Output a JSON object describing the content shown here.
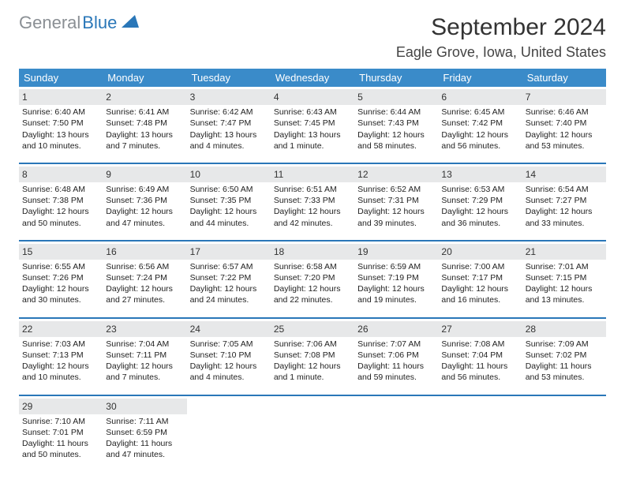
{
  "logo": {
    "gray": "General",
    "blue": "Blue"
  },
  "title": "September 2024",
  "location": "Eagle Grove, Iowa, United States",
  "colors": {
    "header_bg": "#3a8bc9",
    "week_rule": "#2a77b8",
    "daynum_bg": "#e7e8e9",
    "logo_gray": "#8a8f94",
    "logo_blue": "#2a77b8"
  },
  "dow": [
    "Sunday",
    "Monday",
    "Tuesday",
    "Wednesday",
    "Thursday",
    "Friday",
    "Saturday"
  ],
  "days": [
    {
      "n": "1",
      "sr": "Sunrise: 6:40 AM",
      "ss": "Sunset: 7:50 PM",
      "dl": "Daylight: 13 hours and 10 minutes."
    },
    {
      "n": "2",
      "sr": "Sunrise: 6:41 AM",
      "ss": "Sunset: 7:48 PM",
      "dl": "Daylight: 13 hours and 7 minutes."
    },
    {
      "n": "3",
      "sr": "Sunrise: 6:42 AM",
      "ss": "Sunset: 7:47 PM",
      "dl": "Daylight: 13 hours and 4 minutes."
    },
    {
      "n": "4",
      "sr": "Sunrise: 6:43 AM",
      "ss": "Sunset: 7:45 PM",
      "dl": "Daylight: 13 hours and 1 minute."
    },
    {
      "n": "5",
      "sr": "Sunrise: 6:44 AM",
      "ss": "Sunset: 7:43 PM",
      "dl": "Daylight: 12 hours and 58 minutes."
    },
    {
      "n": "6",
      "sr": "Sunrise: 6:45 AM",
      "ss": "Sunset: 7:42 PM",
      "dl": "Daylight: 12 hours and 56 minutes."
    },
    {
      "n": "7",
      "sr": "Sunrise: 6:46 AM",
      "ss": "Sunset: 7:40 PM",
      "dl": "Daylight: 12 hours and 53 minutes."
    },
    {
      "n": "8",
      "sr": "Sunrise: 6:48 AM",
      "ss": "Sunset: 7:38 PM",
      "dl": "Daylight: 12 hours and 50 minutes."
    },
    {
      "n": "9",
      "sr": "Sunrise: 6:49 AM",
      "ss": "Sunset: 7:36 PM",
      "dl": "Daylight: 12 hours and 47 minutes."
    },
    {
      "n": "10",
      "sr": "Sunrise: 6:50 AM",
      "ss": "Sunset: 7:35 PM",
      "dl": "Daylight: 12 hours and 44 minutes."
    },
    {
      "n": "11",
      "sr": "Sunrise: 6:51 AM",
      "ss": "Sunset: 7:33 PM",
      "dl": "Daylight: 12 hours and 42 minutes."
    },
    {
      "n": "12",
      "sr": "Sunrise: 6:52 AM",
      "ss": "Sunset: 7:31 PM",
      "dl": "Daylight: 12 hours and 39 minutes."
    },
    {
      "n": "13",
      "sr": "Sunrise: 6:53 AM",
      "ss": "Sunset: 7:29 PM",
      "dl": "Daylight: 12 hours and 36 minutes."
    },
    {
      "n": "14",
      "sr": "Sunrise: 6:54 AM",
      "ss": "Sunset: 7:27 PM",
      "dl": "Daylight: 12 hours and 33 minutes."
    },
    {
      "n": "15",
      "sr": "Sunrise: 6:55 AM",
      "ss": "Sunset: 7:26 PM",
      "dl": "Daylight: 12 hours and 30 minutes."
    },
    {
      "n": "16",
      "sr": "Sunrise: 6:56 AM",
      "ss": "Sunset: 7:24 PM",
      "dl": "Daylight: 12 hours and 27 minutes."
    },
    {
      "n": "17",
      "sr": "Sunrise: 6:57 AM",
      "ss": "Sunset: 7:22 PM",
      "dl": "Daylight: 12 hours and 24 minutes."
    },
    {
      "n": "18",
      "sr": "Sunrise: 6:58 AM",
      "ss": "Sunset: 7:20 PM",
      "dl": "Daylight: 12 hours and 22 minutes."
    },
    {
      "n": "19",
      "sr": "Sunrise: 6:59 AM",
      "ss": "Sunset: 7:19 PM",
      "dl": "Daylight: 12 hours and 19 minutes."
    },
    {
      "n": "20",
      "sr": "Sunrise: 7:00 AM",
      "ss": "Sunset: 7:17 PM",
      "dl": "Daylight: 12 hours and 16 minutes."
    },
    {
      "n": "21",
      "sr": "Sunrise: 7:01 AM",
      "ss": "Sunset: 7:15 PM",
      "dl": "Daylight: 12 hours and 13 minutes."
    },
    {
      "n": "22",
      "sr": "Sunrise: 7:03 AM",
      "ss": "Sunset: 7:13 PM",
      "dl": "Daylight: 12 hours and 10 minutes."
    },
    {
      "n": "23",
      "sr": "Sunrise: 7:04 AM",
      "ss": "Sunset: 7:11 PM",
      "dl": "Daylight: 12 hours and 7 minutes."
    },
    {
      "n": "24",
      "sr": "Sunrise: 7:05 AM",
      "ss": "Sunset: 7:10 PM",
      "dl": "Daylight: 12 hours and 4 minutes."
    },
    {
      "n": "25",
      "sr": "Sunrise: 7:06 AM",
      "ss": "Sunset: 7:08 PM",
      "dl": "Daylight: 12 hours and 1 minute."
    },
    {
      "n": "26",
      "sr": "Sunrise: 7:07 AM",
      "ss": "Sunset: 7:06 PM",
      "dl": "Daylight: 11 hours and 59 minutes."
    },
    {
      "n": "27",
      "sr": "Sunrise: 7:08 AM",
      "ss": "Sunset: 7:04 PM",
      "dl": "Daylight: 11 hours and 56 minutes."
    },
    {
      "n": "28",
      "sr": "Sunrise: 7:09 AM",
      "ss": "Sunset: 7:02 PM",
      "dl": "Daylight: 11 hours and 53 minutes."
    },
    {
      "n": "29",
      "sr": "Sunrise: 7:10 AM",
      "ss": "Sunset: 7:01 PM",
      "dl": "Daylight: 11 hours and 50 minutes."
    },
    {
      "n": "30",
      "sr": "Sunrise: 7:11 AM",
      "ss": "Sunset: 6:59 PM",
      "dl": "Daylight: 11 hours and 47 minutes."
    }
  ],
  "layout": {
    "first_dow_index": 0,
    "total_cells": 35
  }
}
